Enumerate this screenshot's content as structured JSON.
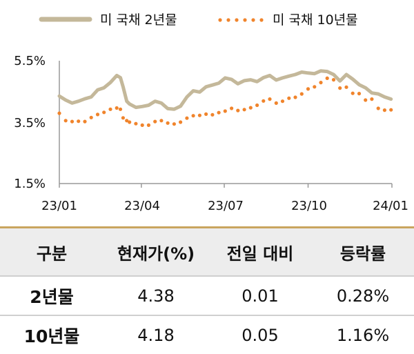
{
  "chart_data": {
    "type": "line",
    "legend": [
      "미 국채 2년물",
      "미 국채 10년물"
    ],
    "legend_position": "top",
    "ylim": [
      1.5,
      5.5
    ],
    "y_ticks": [
      "5.5%",
      "3.5%",
      "1.5%"
    ],
    "y_tick_values": [
      5.5,
      3.5,
      1.5
    ],
    "x_ticks": [
      "23/01",
      "23/04",
      "23/07",
      "23/10",
      "24/01"
    ],
    "x_tick_dates": [
      "2023-01-01",
      "2023-04-01",
      "2023-07-01",
      "2023-10-01",
      "2024-01-01"
    ],
    "grid": false,
    "series": [
      {
        "name": "미 국채 2년물",
        "style": "solid",
        "color": "#c4b89a",
        "x": [
          "2023-01-01",
          "2023-01-08",
          "2023-01-15",
          "2023-01-22",
          "2023-01-29",
          "2023-02-05",
          "2023-02-12",
          "2023-02-19",
          "2023-02-26",
          "2023-03-05",
          "2023-03-09",
          "2023-03-12",
          "2023-03-16",
          "2023-03-19",
          "2023-03-26",
          "2023-04-02",
          "2023-04-09",
          "2023-04-16",
          "2023-04-23",
          "2023-04-30",
          "2023-05-07",
          "2023-05-14",
          "2023-05-21",
          "2023-05-28",
          "2023-06-04",
          "2023-06-11",
          "2023-06-18",
          "2023-06-25",
          "2023-07-02",
          "2023-07-09",
          "2023-07-16",
          "2023-07-23",
          "2023-07-30",
          "2023-08-06",
          "2023-08-13",
          "2023-08-20",
          "2023-08-27",
          "2023-09-03",
          "2023-09-10",
          "2023-09-17",
          "2023-09-24",
          "2023-10-01",
          "2023-10-08",
          "2023-10-15",
          "2023-10-22",
          "2023-10-29",
          "2023-11-05",
          "2023-11-12",
          "2023-11-19",
          "2023-11-26",
          "2023-12-03",
          "2023-12-10",
          "2023-12-17",
          "2023-12-24",
          "2023-12-31"
        ],
        "y": [
          4.35,
          4.22,
          4.12,
          4.18,
          4.26,
          4.32,
          4.55,
          4.62,
          4.79,
          5.02,
          4.95,
          4.65,
          4.18,
          4.09,
          3.98,
          4.01,
          4.05,
          4.18,
          4.12,
          3.94,
          3.92,
          4.02,
          4.32,
          4.52,
          4.48,
          4.65,
          4.71,
          4.77,
          4.94,
          4.89,
          4.75,
          4.85,
          4.88,
          4.82,
          4.95,
          5.02,
          4.87,
          4.94,
          5.0,
          5.05,
          5.13,
          5.1,
          5.08,
          5.17,
          5.15,
          5.05,
          4.84,
          5.05,
          4.9,
          4.72,
          4.62,
          4.45,
          4.42,
          4.32,
          4.25
        ]
      },
      {
        "name": "미 국채 10년물",
        "style": "dotted",
        "color": "#f0842c",
        "x": [
          "2023-01-01",
          "2023-01-08",
          "2023-01-15",
          "2023-01-22",
          "2023-01-29",
          "2023-02-05",
          "2023-02-12",
          "2023-02-19",
          "2023-02-26",
          "2023-03-05",
          "2023-03-09",
          "2023-03-12",
          "2023-03-16",
          "2023-03-19",
          "2023-03-26",
          "2023-04-02",
          "2023-04-09",
          "2023-04-16",
          "2023-04-23",
          "2023-04-30",
          "2023-05-07",
          "2023-05-14",
          "2023-05-21",
          "2023-05-28",
          "2023-06-04",
          "2023-06-11",
          "2023-06-18",
          "2023-06-25",
          "2023-07-02",
          "2023-07-09",
          "2023-07-16",
          "2023-07-23",
          "2023-07-30",
          "2023-08-06",
          "2023-08-13",
          "2023-08-20",
          "2023-08-27",
          "2023-09-03",
          "2023-09-10",
          "2023-09-17",
          "2023-09-24",
          "2023-10-01",
          "2023-10-08",
          "2023-10-15",
          "2023-10-22",
          "2023-10-29",
          "2023-11-05",
          "2023-11-12",
          "2023-11-19",
          "2023-11-26",
          "2023-12-03",
          "2023-12-10",
          "2023-12-17",
          "2023-12-24",
          "2023-12-31"
        ],
        "y": [
          3.79,
          3.55,
          3.52,
          3.53,
          3.52,
          3.65,
          3.75,
          3.82,
          3.92,
          3.96,
          3.92,
          3.64,
          3.55,
          3.5,
          3.45,
          3.4,
          3.4,
          3.52,
          3.55,
          3.47,
          3.44,
          3.5,
          3.63,
          3.71,
          3.72,
          3.76,
          3.74,
          3.81,
          3.86,
          3.95,
          3.88,
          3.91,
          3.97,
          4.05,
          4.19,
          4.25,
          4.12,
          4.18,
          4.28,
          4.31,
          4.42,
          4.58,
          4.65,
          4.79,
          4.93,
          4.88,
          4.61,
          4.64,
          4.44,
          4.43,
          4.22,
          4.25,
          3.95,
          3.89,
          3.9
        ]
      }
    ]
  },
  "table": {
    "headers": [
      "구분",
      "현재가(%)",
      "전일 대비",
      "등락률"
    ],
    "rows": [
      [
        "2년물",
        "4.38",
        "0.01",
        "0.28%"
      ],
      [
        "10년물",
        "4.18",
        "0.05",
        "1.16%"
      ]
    ]
  },
  "colors": {
    "series_2y": "#c4b89a",
    "series_10y": "#f0842c",
    "axis": "#999999",
    "header_bg": "#ededed",
    "header_rule": "#c9a45e"
  }
}
